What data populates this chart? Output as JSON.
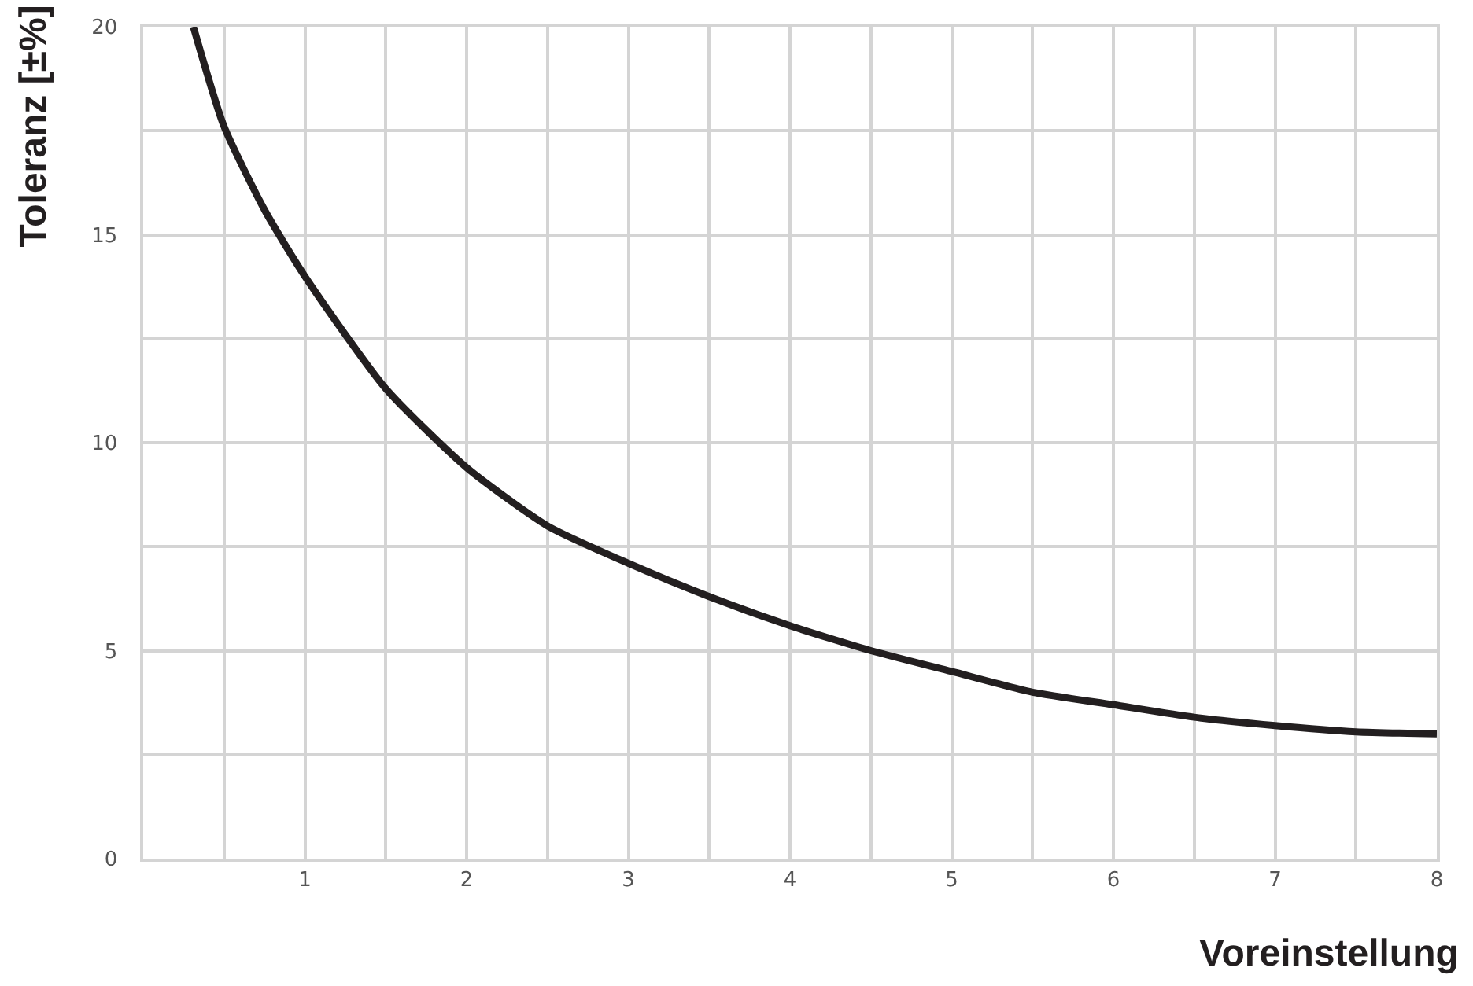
{
  "chart_data": {
    "type": "line",
    "xlabel": "Voreinstellung",
    "ylabel": "Toleranz [±%]",
    "x": [
      0.31,
      0.5,
      0.75,
      1,
      1.5,
      2,
      2.5,
      3,
      3.5,
      4,
      4.5,
      5,
      5.5,
      6,
      6.5,
      7,
      7.5,
      8
    ],
    "series": [
      {
        "color": "#231f20",
        "values": [
          20,
          17.6,
          15.6,
          14.0,
          11.3,
          9.4,
          8.0,
          7.1,
          6.3,
          5.6,
          5.0,
          4.5,
          4.0,
          3.7,
          3.4,
          3.2,
          3.05,
          3.0
        ]
      }
    ],
    "xlim": [
      0,
      8
    ],
    "ylim": [
      0,
      20
    ],
    "xticks": [
      {
        "value": 0,
        "label": null
      },
      {
        "value": 0.5,
        "label": null
      },
      1,
      {
        "value": 1.5,
        "label": null
      },
      2,
      {
        "value": 2.5,
        "label": null
      },
      3,
      {
        "value": 3.5,
        "label": null
      },
      4,
      {
        "value": 4.5,
        "label": null
      },
      5,
      {
        "value": 5.5,
        "label": null
      },
      6,
      {
        "value": 6.5,
        "label": null
      },
      7,
      {
        "value": 7.5,
        "label": null
      },
      8
    ],
    "yticks": [
      0,
      {
        "value": 2.5,
        "label": null
      },
      5,
      {
        "value": 7.5,
        "label": null
      },
      10,
      {
        "value": 12.5,
        "label": null
      },
      15,
      {
        "value": 17.5,
        "label": null
      },
      20
    ],
    "grid": true,
    "marker": "none",
    "line_style": "solid"
  }
}
